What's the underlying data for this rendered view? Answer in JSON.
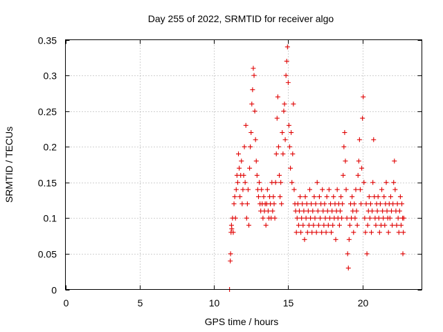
{
  "chart_data": {
    "type": "scatter",
    "title": "Day 255 of 2022, SRMTID for receiver algo",
    "xlabel": "GPS time / hours",
    "ylabel": "SRMTID / TECUs",
    "xlim": [
      0,
      24
    ],
    "ylim": [
      0,
      0.35
    ],
    "xticks": [
      0,
      5,
      10,
      15,
      20
    ],
    "xtick_labels": [
      "0",
      "5",
      "10",
      "15",
      "20"
    ],
    "yticks": [
      0,
      0.05,
      0.1,
      0.15,
      0.2,
      0.25,
      0.3,
      0.35
    ],
    "ytick_labels": [
      "0",
      "0.05",
      "0.1",
      "0.15",
      "0.2",
      "0.25",
      "0.3",
      "0.35"
    ],
    "grid": true,
    "marker": "+",
    "color": "#e00000",
    "series": [
      {
        "name": "SRMTID",
        "points": [
          [
            11.05,
            0.0
          ],
          [
            11.1,
            0.04
          ],
          [
            11.12,
            0.05
          ],
          [
            11.15,
            0.08
          ],
          [
            11.18,
            0.09
          ],
          [
            11.2,
            0.085
          ],
          [
            11.25,
            0.1
          ],
          [
            11.3,
            0.08
          ],
          [
            11.35,
            0.12
          ],
          [
            11.4,
            0.13
          ],
          [
            11.45,
            0.1
          ],
          [
            11.5,
            0.14
          ],
          [
            11.55,
            0.16
          ],
          [
            11.6,
            0.15
          ],
          [
            11.65,
            0.19
          ],
          [
            11.7,
            0.17
          ],
          [
            11.75,
            0.13
          ],
          [
            11.8,
            0.16
          ],
          [
            11.85,
            0.18
          ],
          [
            11.9,
            0.12
          ],
          [
            11.95,
            0.14
          ],
          [
            12.0,
            0.16
          ],
          [
            12.05,
            0.2
          ],
          [
            12.1,
            0.15
          ],
          [
            12.15,
            0.23
          ],
          [
            12.2,
            0.1
          ],
          [
            12.25,
            0.12
          ],
          [
            12.3,
            0.14
          ],
          [
            12.35,
            0.09
          ],
          [
            12.4,
            0.17
          ],
          [
            12.45,
            0.2
          ],
          [
            12.5,
            0.22
          ],
          [
            12.55,
            0.26
          ],
          [
            12.6,
            0.28
          ],
          [
            12.65,
            0.31
          ],
          [
            12.7,
            0.3
          ],
          [
            12.75,
            0.25
          ],
          [
            12.8,
            0.21
          ],
          [
            12.85,
            0.18
          ],
          [
            12.9,
            0.16
          ],
          [
            12.95,
            0.14
          ],
          [
            13.0,
            0.13
          ],
          [
            13.05,
            0.15
          ],
          [
            13.1,
            0.12
          ],
          [
            13.15,
            0.11
          ],
          [
            13.2,
            0.14
          ],
          [
            13.25,
            0.12
          ],
          [
            13.3,
            0.1
          ],
          [
            13.35,
            0.13
          ],
          [
            13.4,
            0.11
          ],
          [
            13.45,
            0.12
          ],
          [
            13.5,
            0.09
          ],
          [
            13.55,
            0.12
          ],
          [
            13.6,
            0.14
          ],
          [
            13.65,
            0.11
          ],
          [
            13.7,
            0.1
          ],
          [
            13.75,
            0.13
          ],
          [
            13.8,
            0.12
          ],
          [
            13.85,
            0.1
          ],
          [
            13.9,
            0.15
          ],
          [
            13.95,
            0.11
          ],
          [
            14.0,
            0.13
          ],
          [
            14.05,
            0.12
          ],
          [
            14.1,
            0.1
          ],
          [
            14.15,
            0.15
          ],
          [
            14.2,
            0.19
          ],
          [
            14.25,
            0.24
          ],
          [
            14.3,
            0.27
          ],
          [
            14.35,
            0.2
          ],
          [
            14.4,
            0.16
          ],
          [
            14.45,
            0.13
          ],
          [
            14.5,
            0.15
          ],
          [
            14.55,
            0.12
          ],
          [
            14.6,
            0.22
          ],
          [
            14.65,
            0.19
          ],
          [
            14.7,
            0.25
          ],
          [
            14.75,
            0.26
          ],
          [
            14.8,
            0.21
          ],
          [
            14.85,
            0.3
          ],
          [
            14.9,
            0.32
          ],
          [
            14.95,
            0.34
          ],
          [
            15.0,
            0.29
          ],
          [
            15.05,
            0.23
          ],
          [
            15.1,
            0.2
          ],
          [
            15.15,
            0.17
          ],
          [
            15.2,
            0.22
          ],
          [
            15.25,
            0.15
          ],
          [
            15.3,
            0.19
          ],
          [
            15.35,
            0.26
          ],
          [
            15.4,
            0.14
          ],
          [
            15.45,
            0.12
          ],
          [
            15.5,
            0.11
          ],
          [
            15.55,
            0.08
          ],
          [
            15.6,
            0.1
          ],
          [
            15.65,
            0.12
          ],
          [
            15.7,
            0.09
          ],
          [
            15.75,
            0.11
          ],
          [
            15.8,
            0.13
          ],
          [
            15.85,
            0.08
          ],
          [
            15.9,
            0.1
          ],
          [
            15.95,
            0.12
          ],
          [
            16.0,
            0.09
          ],
          [
            16.05,
            0.11
          ],
          [
            16.1,
            0.07
          ],
          [
            16.15,
            0.13
          ],
          [
            16.2,
            0.1
          ],
          [
            16.25,
            0.12
          ],
          [
            16.3,
            0.08
          ],
          [
            16.35,
            0.11
          ],
          [
            16.4,
            0.09
          ],
          [
            16.45,
            0.14
          ],
          [
            16.5,
            0.1
          ],
          [
            16.55,
            0.12
          ],
          [
            16.6,
            0.08
          ],
          [
            16.65,
            0.11
          ],
          [
            16.7,
            0.09
          ],
          [
            16.75,
            0.13
          ],
          [
            16.8,
            0.1
          ],
          [
            16.85,
            0.12
          ],
          [
            16.9,
            0.08
          ],
          [
            16.95,
            0.15
          ],
          [
            17.0,
            0.11
          ],
          [
            17.05,
            0.09
          ],
          [
            17.1,
            0.13
          ],
          [
            17.15,
            0.1
          ],
          [
            17.2,
            0.12
          ],
          [
            17.25,
            0.08
          ],
          [
            17.3,
            0.14
          ],
          [
            17.35,
            0.11
          ],
          [
            17.4,
            0.09
          ],
          [
            17.45,
            0.12
          ],
          [
            17.5,
            0.1
          ],
          [
            17.55,
            0.08
          ],
          [
            17.6,
            0.13
          ],
          [
            17.65,
            0.11
          ],
          [
            17.7,
            0.09
          ],
          [
            17.75,
            0.14
          ],
          [
            17.8,
            0.1
          ],
          [
            17.85,
            0.12
          ],
          [
            17.9,
            0.08
          ],
          [
            17.95,
            0.11
          ],
          [
            18.0,
            0.09
          ],
          [
            18.05,
            0.13
          ],
          [
            18.1,
            0.1
          ],
          [
            18.15,
            0.12
          ],
          [
            18.2,
            0.07
          ],
          [
            18.25,
            0.11
          ],
          [
            18.3,
            0.14
          ],
          [
            18.35,
            0.1
          ],
          [
            18.4,
            0.12
          ],
          [
            18.45,
            0.09
          ],
          [
            18.5,
            0.11
          ],
          [
            18.55,
            0.13
          ],
          [
            18.6,
            0.1
          ],
          [
            18.65,
            0.12
          ],
          [
            18.7,
            0.16
          ],
          [
            18.75,
            0.2
          ],
          [
            18.8,
            0.22
          ],
          [
            18.85,
            0.18
          ],
          [
            18.9,
            0.14
          ],
          [
            18.95,
            0.1
          ],
          [
            19.0,
            0.05
          ],
          [
            19.05,
            0.03
          ],
          [
            19.1,
            0.07
          ],
          [
            19.15,
            0.09
          ],
          [
            19.2,
            0.12
          ],
          [
            19.25,
            0.1
          ],
          [
            19.3,
            0.13
          ],
          [
            19.35,
            0.11
          ],
          [
            19.4,
            0.08
          ],
          [
            19.45,
            0.12
          ],
          [
            19.5,
            0.1
          ],
          [
            19.55,
            0.14
          ],
          [
            19.6,
            0.11
          ],
          [
            19.65,
            0.09
          ],
          [
            19.7,
            0.16
          ],
          [
            19.75,
            0.18
          ],
          [
            19.8,
            0.21
          ],
          [
            19.85,
            0.14
          ],
          [
            19.9,
            0.12
          ],
          [
            19.95,
            0.17
          ],
          [
            20.0,
            0.24
          ],
          [
            20.05,
            0.27
          ],
          [
            20.1,
            0.15
          ],
          [
            20.15,
            0.1
          ],
          [
            20.2,
            0.08
          ],
          [
            20.25,
            0.12
          ],
          [
            20.3,
            0.05
          ],
          [
            20.35,
            0.09
          ],
          [
            20.4,
            0.11
          ],
          [
            20.45,
            0.13
          ],
          [
            20.5,
            0.1
          ],
          [
            20.55,
            0.12
          ],
          [
            20.6,
            0.08
          ],
          [
            20.65,
            0.11
          ],
          [
            20.7,
            0.15
          ],
          [
            20.75,
            0.21
          ],
          [
            20.8,
            0.13
          ],
          [
            20.85,
            0.1
          ],
          [
            20.9,
            0.09
          ],
          [
            20.95,
            0.12
          ],
          [
            21.0,
            0.11
          ],
          [
            21.05,
            0.13
          ],
          [
            21.1,
            0.1
          ],
          [
            21.15,
            0.08
          ],
          [
            21.2,
            0.12
          ],
          [
            21.25,
            0.09
          ],
          [
            21.3,
            0.14
          ],
          [
            21.35,
            0.11
          ],
          [
            21.4,
            0.1
          ],
          [
            21.45,
            0.13
          ],
          [
            21.5,
            0.09
          ],
          [
            21.55,
            0.12
          ],
          [
            21.6,
            0.15
          ],
          [
            21.65,
            0.11
          ],
          [
            21.7,
            0.1
          ],
          [
            21.75,
            0.08
          ],
          [
            21.8,
            0.12
          ],
          [
            21.85,
            0.1
          ],
          [
            21.9,
            0.13
          ],
          [
            21.95,
            0.11
          ],
          [
            22.0,
            0.09
          ],
          [
            22.05,
            0.12
          ],
          [
            22.1,
            0.15
          ],
          [
            22.15,
            0.18
          ],
          [
            22.2,
            0.14
          ],
          [
            22.25,
            0.11
          ],
          [
            22.3,
            0.09
          ],
          [
            22.35,
            0.12
          ],
          [
            22.4,
            0.1
          ],
          [
            22.45,
            0.08
          ],
          [
            22.5,
            0.11
          ],
          [
            22.55,
            0.13
          ],
          [
            22.6,
            0.09
          ],
          [
            22.65,
            0.12
          ],
          [
            22.7,
            0.1
          ],
          [
            22.72,
            0.05
          ],
          [
            22.75,
            0.08
          ],
          [
            22.78,
            0.1
          ]
        ]
      }
    ]
  }
}
